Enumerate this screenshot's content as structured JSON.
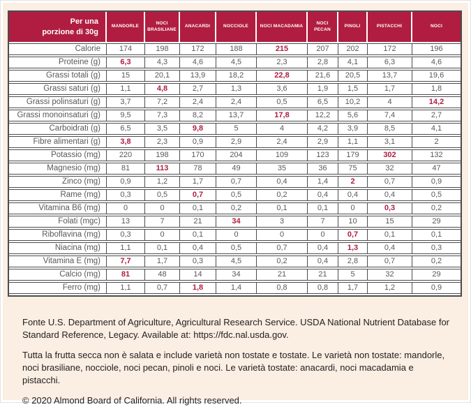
{
  "colors": {
    "background": "#fbeee2",
    "accent_red": "#b01d40",
    "table_border": "#4b4c4e",
    "cell_text": "#58585a",
    "footer_text": "#232021"
  },
  "table": {
    "title_line1": "Per una",
    "title_line2": "porzione di 30g",
    "columns": [
      "MANDORLE",
      "NOCI BRASILIANE",
      "ANACARDI",
      "NOCCIOLE",
      "NOCI MACADAMIA",
      "NOCI PECAN",
      "PINOLI",
      "PISTACCHI",
      "NOCI"
    ],
    "rows": [
      {
        "label": "Calorie",
        "values": [
          "174",
          "198",
          "172",
          "188",
          "215",
          "207",
          "202",
          "172",
          "196"
        ],
        "highlight": 4
      },
      {
        "label": "Proteine (g)",
        "values": [
          "6,3",
          "4,3",
          "4,6",
          "4,5",
          "2,3",
          "2,8",
          "4,1",
          "6,3",
          "4,6"
        ],
        "highlight": 0
      },
      {
        "label": "Grassi totali (g)",
        "values": [
          "15",
          "20,1",
          "13,9",
          "18,2",
          "22,8",
          "21,6",
          "20,5",
          "13,7",
          "19,6"
        ],
        "highlight": 4
      },
      {
        "label": "Grassi saturi (g)",
        "values": [
          "1,1",
          "4,8",
          "2,7",
          "1,3",
          "3,6",
          "1,9",
          "1,5",
          "1,7",
          "1,8"
        ],
        "highlight": 1
      },
      {
        "label": "Grassi polinsaturi (g)",
        "values": [
          "3,7",
          "7,2",
          "2,4",
          "2,4",
          "0,5",
          "6,5",
          "10,2",
          "4",
          "14,2"
        ],
        "highlight": 8
      },
      {
        "label": "Grassi monoinsaturi (g)",
        "values": [
          "9,5",
          "7,3",
          "8,2",
          "13,7",
          "17,8",
          "12,2",
          "5,6",
          "7,4",
          "2,7"
        ],
        "highlight": 4
      },
      {
        "label": "Carboidrati (g)",
        "values": [
          "6,5",
          "3,5",
          "9,8",
          "5",
          "4",
          "4,2",
          "3,9",
          "8,5",
          "4,1"
        ],
        "highlight": 2
      },
      {
        "label": "Fibre alimentari (g)",
        "values": [
          "3,8",
          "2,3",
          "0,9",
          "2,9",
          "2,4",
          "2,9",
          "1,1",
          "3,1",
          "2"
        ],
        "highlight": 0
      },
      {
        "label": "Potassio (mg)",
        "values": [
          "220",
          "198",
          "170",
          "204",
          "109",
          "123",
          "179",
          "302",
          "132"
        ],
        "highlight": 7
      },
      {
        "label": "Magnesio (mg)",
        "values": [
          "81",
          "113",
          "78",
          "49",
          "35",
          "36",
          "75",
          "32",
          "47"
        ],
        "highlight": 1
      },
      {
        "label": "Zinco (mg)",
        "values": [
          "0,9",
          "1,2",
          "1,7",
          "0,7",
          "0,4",
          "1,4",
          "2",
          "0,7",
          "0,9"
        ],
        "highlight": 6
      },
      {
        "label": "Rame (mg)",
        "values": [
          "0,3",
          "0,5",
          "0,7",
          "0,5",
          "0,2",
          "0,4",
          "0,4",
          "0,4",
          "0,5"
        ],
        "highlight": 2
      },
      {
        "label": "Vitamina B6 (mg)",
        "values": [
          "0",
          "0",
          "0,1",
          "0,2",
          "0,1",
          "0,1",
          "0",
          "0,3",
          "0,2"
        ],
        "highlight": 7
      },
      {
        "label": "Folati (mgc)",
        "values": [
          "13",
          "7",
          "21",
          "34",
          "3",
          "7",
          "10",
          "15",
          "29"
        ],
        "highlight": 3
      },
      {
        "label": "Riboflavina (mg)",
        "values": [
          "0,3",
          "0",
          "0,1",
          "0",
          "0",
          "0",
          "0,7",
          "0,1",
          "0,1"
        ],
        "highlight": 6
      },
      {
        "label": "Niacina (mg)",
        "values": [
          "1,1",
          "0,1",
          "0,4",
          "0,5",
          "0,7",
          "0,4",
          "1,3",
          "0,4",
          "0,3"
        ],
        "highlight": 6
      },
      {
        "label": "Vitamina E (mg)",
        "values": [
          "7,7",
          "1,7",
          "0,3",
          "4,5",
          "0,2",
          "0,4",
          "2,8",
          "0,7",
          "0,2"
        ],
        "highlight": 0
      },
      {
        "label": "Calcio (mg)",
        "values": [
          "81",
          "48",
          "14",
          "34",
          "21",
          "21",
          "5",
          "32",
          "29"
        ],
        "highlight": 0
      },
      {
        "label": "Ferro (mg)",
        "values": [
          "1,1",
          "0,7",
          "1,8",
          "1,4",
          "0,8",
          "0,8",
          "1,7",
          "1,2",
          "0,9"
        ],
        "highlight": 2
      }
    ]
  },
  "footer": {
    "source": "Fonte U.S. Department of Agriculture, Agricultural Research Service. USDA National Nutrient Database for Standard Reference, Legacy. Available at: https://fdc.nal.usda.gov.",
    "note": "Tutta la frutta secca non è salata e include varietà non tostate e tostate. Le varietà non tostate: mandorle, noci brasiliane, nocciole, noci pecan, pinoli e noci. Le varietà tostate: anacardi, noci macadamia e pistacchi.",
    "copyright": "© 2020 Almond Board of California. All rights reserved."
  }
}
